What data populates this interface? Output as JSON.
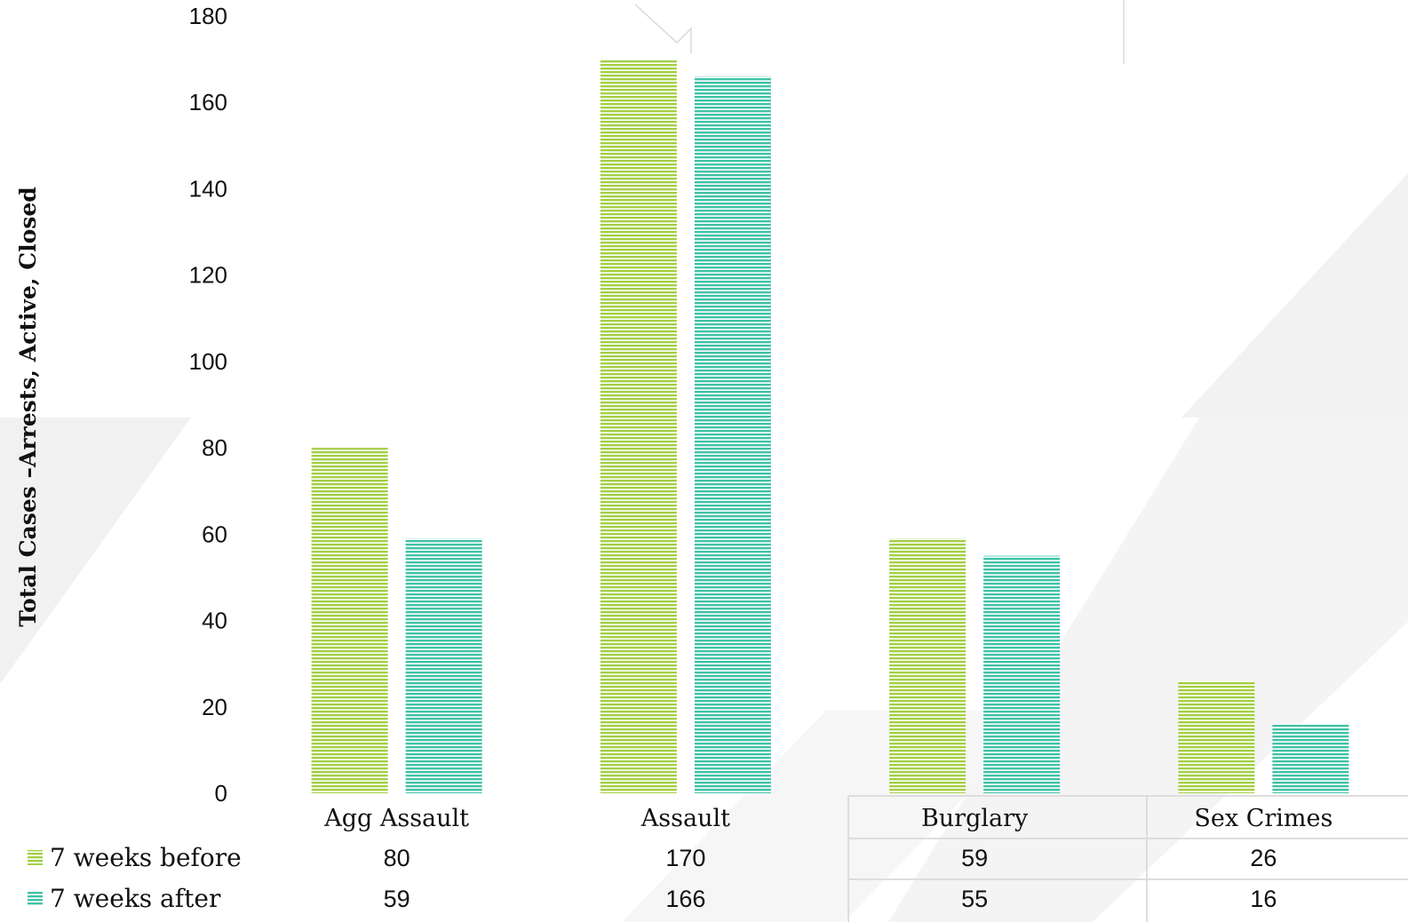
{
  "chart_data": {
    "type": "bar",
    "categories": [
      "Agg Assault",
      "Assault",
      "Burglary",
      "Sex Crimes"
    ],
    "series": [
      {
        "name": "7 weeks before",
        "values": [
          80,
          170,
          59,
          26
        ],
        "color": "#a2cf44"
      },
      {
        "name": "7 weeks after",
        "values": [
          59,
          166,
          55,
          16
        ],
        "color": "#3fc2a7"
      }
    ],
    "ylabel": "Total Cases –Arrests, Active, Closed",
    "xlabel": "",
    "ylim": [
      0,
      180
    ],
    "yticks": [
      0,
      20,
      40,
      60,
      80,
      100,
      120,
      140,
      160,
      180
    ],
    "grid": false,
    "legend": "data table below the chart"
  }
}
